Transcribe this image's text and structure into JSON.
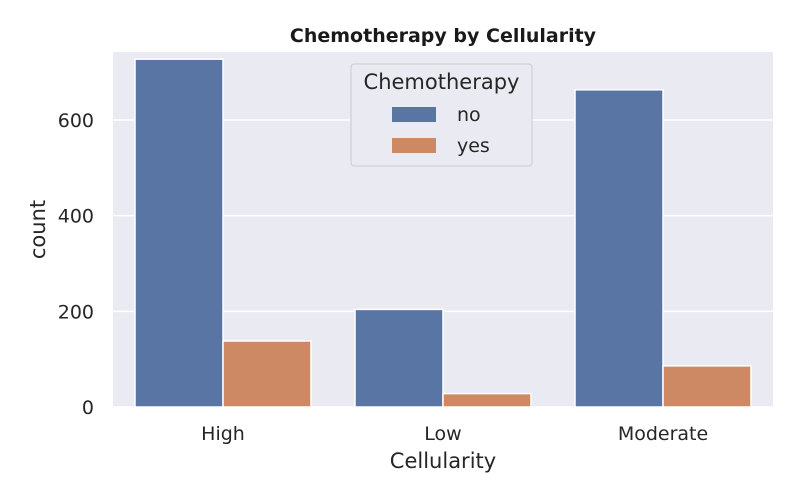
{
  "chart_data": {
    "type": "bar",
    "title": "Chemotherapy by Cellularity",
    "xlabel": "Cellularity",
    "ylabel": "count",
    "categories": [
      "High",
      "Low",
      "Moderate"
    ],
    "series": [
      {
        "name": "no",
        "values": [
          727,
          204,
          663
        ],
        "color": "#5975a4"
      },
      {
        "name": "yes",
        "values": [
          138,
          28,
          86
        ],
        "color": "#cc8963"
      }
    ],
    "ylim": [
      0,
      742
    ],
    "yticks": [
      0,
      200,
      400,
      600
    ],
    "grid": true,
    "legend": {
      "title": "Chemotherapy",
      "placement": "top-center"
    },
    "background": "#eaeaf2"
  }
}
